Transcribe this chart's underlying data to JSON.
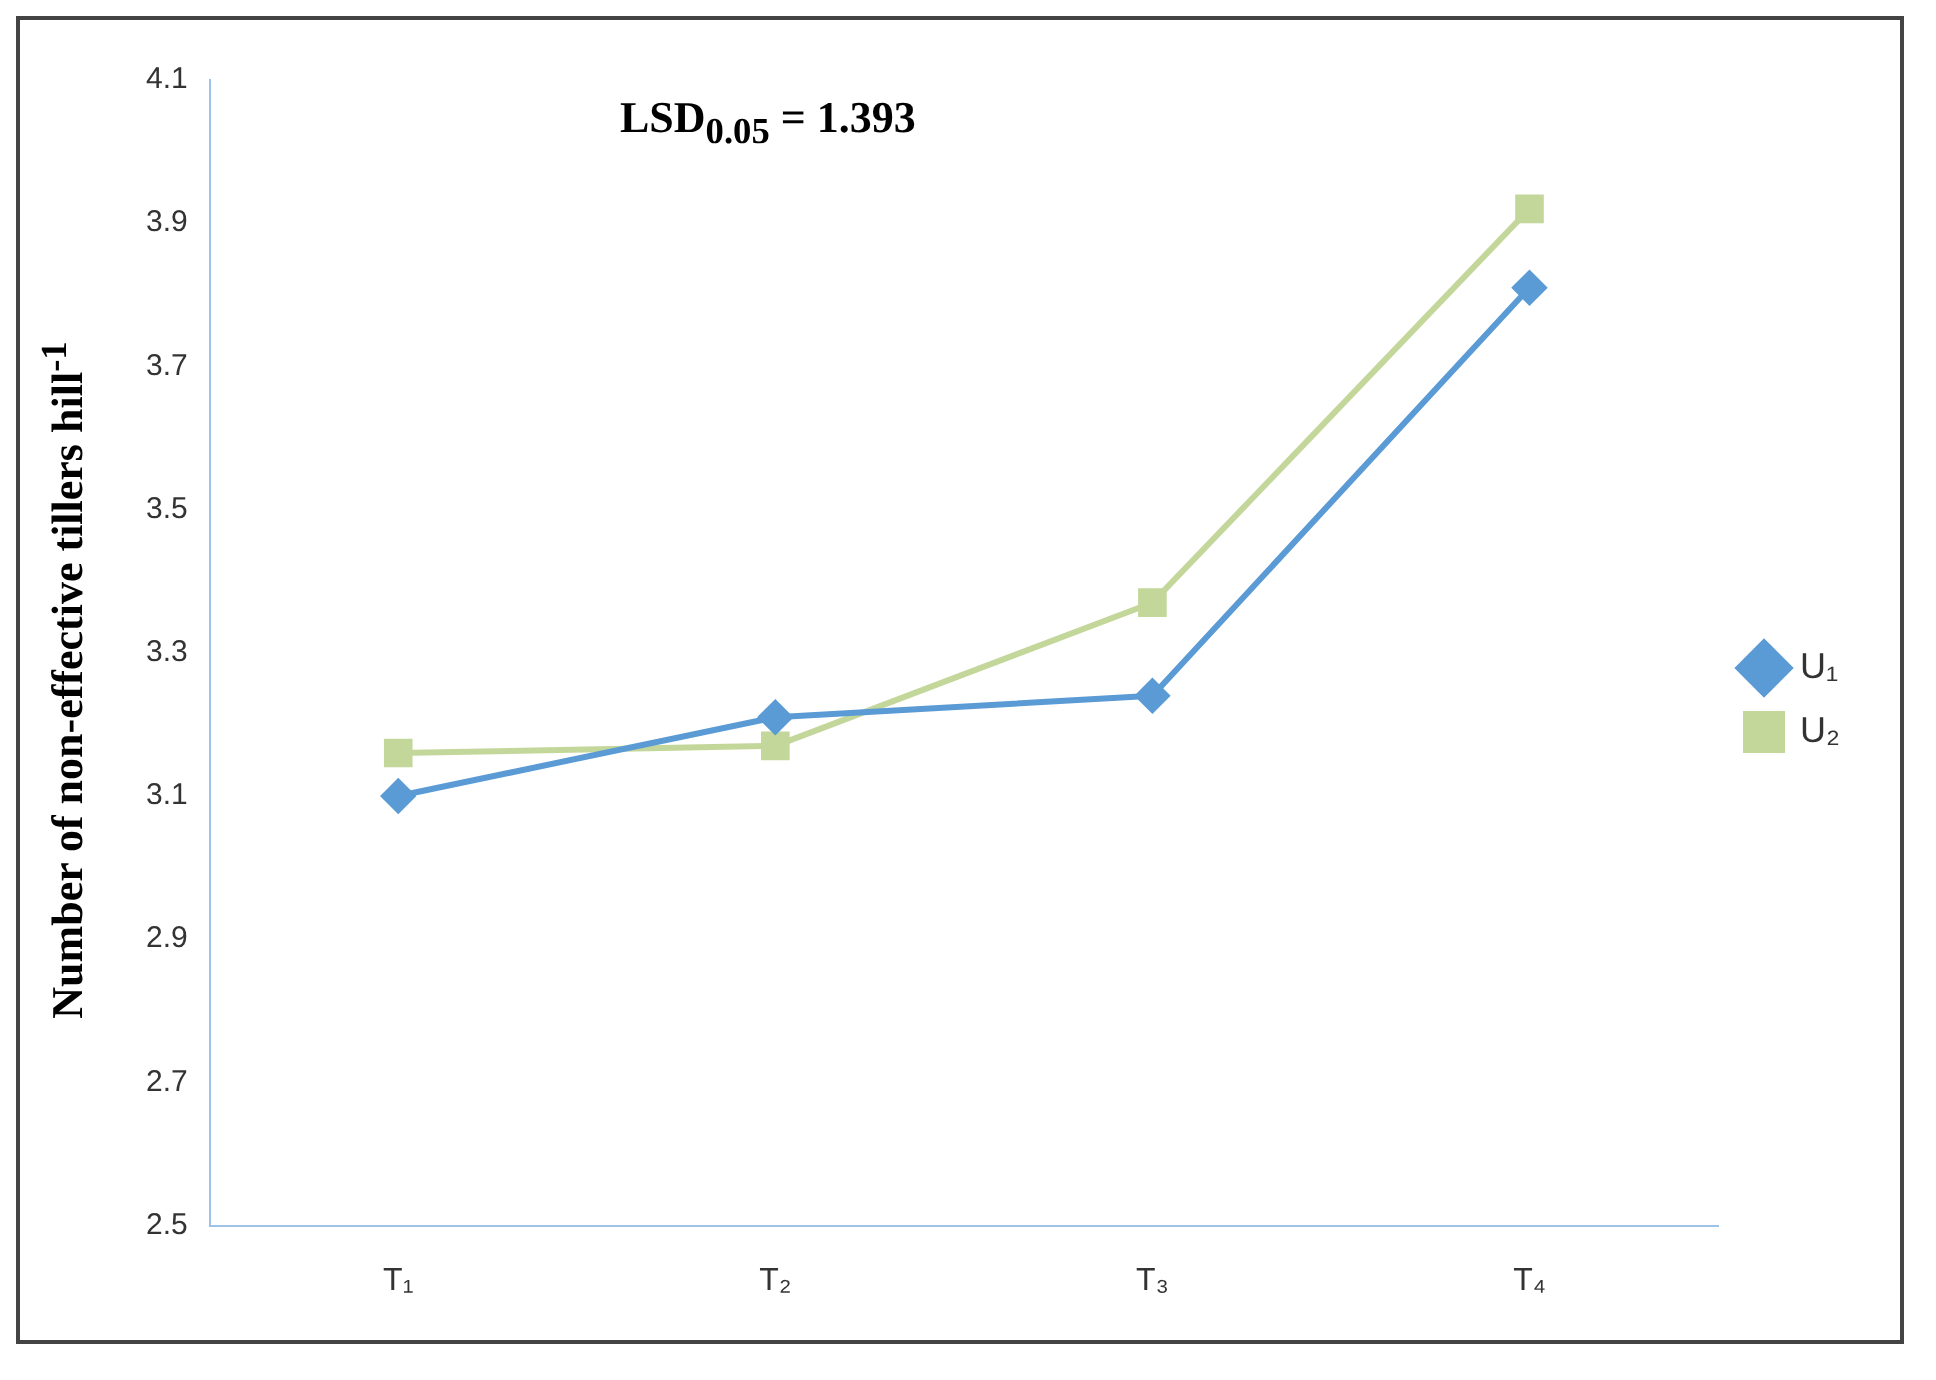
{
  "chart_data": {
    "type": "line",
    "ylabel": "Number of non-effective tillers hill$^{-1}$",
    "annotations": [
      "LSD$_{0.05}$ = 1.393"
    ],
    "categories": [
      "T₁",
      "T₂",
      "T₃",
      "T₄"
    ],
    "series": [
      {
        "name": "U₁",
        "color": "#5b9bd5",
        "marker": "diamond",
        "values": [
          3.1,
          3.21,
          3.24,
          3.81
        ]
      },
      {
        "name": "U₂",
        "color": "#c4d79b",
        "marker": "square",
        "values": [
          3.16,
          3.17,
          3.37,
          3.92
        ]
      }
    ],
    "ylim": [
      2.5,
      4.1
    ],
    "yticks": [
      2.5,
      2.7,
      2.9,
      3.1,
      3.3,
      3.5,
      3.7,
      3.9,
      4.1
    ],
    "grid": false,
    "legend": "right",
    "line_style": "solid"
  }
}
